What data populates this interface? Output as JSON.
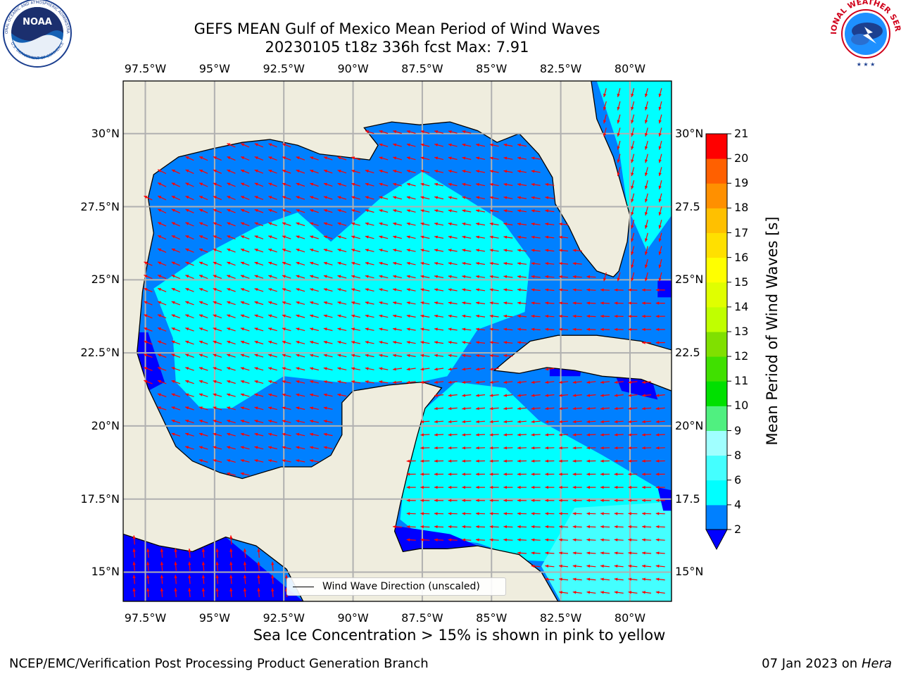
{
  "header": {
    "title_line1": "GEFS MEAN Gulf of Mexico Mean Period of Wind Waves",
    "title_line2": "20230105 t18z 336h fcst   Max: 7.91"
  },
  "logos": {
    "left": {
      "name": "NOAA",
      "ring_text": "NATIONAL OCEANIC AND ATMOSPHERIC ADMINISTRATION",
      "bottom_text": "U.S. DEPARTMENT OF COMMERCE"
    },
    "right": {
      "ring_text": "NATIONAL WEATHER SERVICE"
    }
  },
  "map": {
    "lon_range": [
      -98.3,
      -78.5
    ],
    "lat_range": [
      14.0,
      31.8
    ],
    "lon_ticks": [
      "97.5°W",
      "95°W",
      "92.5°W",
      "90°W",
      "87.5°W",
      "85°W",
      "82.5°W",
      "80°W"
    ],
    "lat_ticks_left": [
      "30°N",
      "27.5°N",
      "25°N",
      "22.5°N",
      "20°N",
      "17.5°N",
      "15°N"
    ],
    "lat_ticks_right": [
      "30°N",
      "27.5",
      "25°N",
      "22.5",
      "20°N",
      "17.5",
      "15°N"
    ],
    "colors": {
      "land": "#efedde",
      "coast": "#000000",
      "grid": "#b0b0b0",
      "arrow": "#ff0000"
    },
    "legend_label": "Wind Wave Direction (unscaled)"
  },
  "colorbar": {
    "title": "Mean Period of Wind Waves [s]",
    "levels": [
      "2",
      "4",
      "6",
      "8",
      "9",
      "10",
      "11",
      "12",
      "13",
      "14",
      "15",
      "16",
      "17",
      "18",
      "19",
      "20",
      "21"
    ],
    "under_color": "#0000ff",
    "colors": [
      "#0080ff",
      "#00ffff",
      "#44ffff",
      "#a0ffff",
      "#50f080",
      "#00e000",
      "#40e000",
      "#80e000",
      "#c0ff00",
      "#e0ff00",
      "#ffff00",
      "#ffe000",
      "#ffc000",
      "#ff9000",
      "#ff6000",
      "#ff0000"
    ]
  },
  "notes": {
    "ice": "Sea Ice Concentration > 15% is shown in pink to yellow",
    "credit": "NCEP/EMC/Verification Post Processing Product Generation Branch",
    "date": "07 Jan 2023 on ",
    "host": "Hera"
  }
}
